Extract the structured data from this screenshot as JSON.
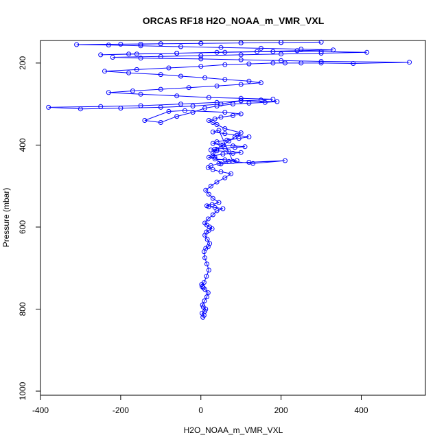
{
  "chart_data": {
    "type": "line",
    "title": "ORCAS RF18 H2O_NOAA_m_VMR_VXL",
    "xlabel": "H2O_NOAA_m_VMR_VXL",
    "ylabel": "Pressure (mbar)",
    "xlim": [
      -400,
      560
    ],
    "ylim": [
      1010,
      145
    ],
    "y_reversed": true,
    "x_ticks": [
      -400,
      -200,
      0,
      200,
      400
    ],
    "y_ticks": [
      200,
      400,
      600,
      800,
      1000
    ],
    "grid": false,
    "marker": "open-circle",
    "series_color": "#0000ff",
    "series": [
      {
        "x": [
          5,
          8,
          3,
          10,
          12,
          6,
          4,
          9,
          15,
          18,
          10,
          6,
          3,
          2,
          8,
          14,
          20,
          15,
          10,
          8,
          12,
          18,
          22,
          16,
          10,
          14,
          20,
          28,
          22,
          15,
          10,
          18,
          30,
          40,
          55,
          35,
          20,
          15,
          28,
          45,
          30,
          20,
          12,
          25,
          40,
          60,
          75,
          50,
          30,
          18,
          25,
          45,
          70,
          90,
          60,
          35,
          20,
          30,
          55,
          80,
          100,
          70,
          40,
          25,
          35,
          60,
          85,
          110,
          80,
          50,
          30,
          40,
          65,
          95,
          120,
          90,
          60,
          30,
          45,
          80,
          130,
          210,
          120,
          50,
          35,
          30,
          40,
          55,
          70,
          85,
          100,
          60,
          40,
          30,
          20,
          35,
          50,
          80,
          100,
          60,
          -40,
          -80,
          -140,
          -100,
          -60,
          -20,
          10,
          40,
          80,
          120,
          160,
          190,
          100,
          50,
          -20,
          -100,
          -200,
          -300,
          -380,
          -250,
          -150,
          -50,
          40,
          100,
          150,
          180,
          100,
          20,
          -60,
          -150,
          -230,
          -170,
          -100,
          -30,
          40,
          100,
          150,
          120,
          60,
          10,
          -50,
          -100,
          -180,
          -240,
          -160,
          -80,
          0,
          60,
          120,
          180,
          210,
          250,
          300,
          380,
          520,
          300,
          200,
          100,
          0,
          -150,
          -220,
          -100,
          0,
          100,
          200,
          300,
          414,
          300,
          180,
          60,
          -60,
          -180,
          -250,
          -160,
          -60,
          40,
          140,
          240,
          330,
          250,
          150,
          50,
          -50,
          -150,
          -230,
          -310,
          -200,
          -100,
          0,
          100,
          200,
          300,
          200,
          100,
          0,
          -100,
          -150
        ],
        "y": [
          820,
          815,
          810,
          805,
          800,
          795,
          790,
          780,
          770,
          760,
          752,
          748,
          745,
          740,
          735,
          720,
          705,
          690,
          675,
          660,
          652,
          648,
          640,
          630,
          620,
          612,
          608,
          604,
          600,
          595,
          590,
          580,
          570,
          560,
          555,
          552,
          550,
          548,
          545,
          540,
          530,
          520,
          510,
          500,
          490,
          480,
          470,
          465,
          460,
          455,
          450,
          445,
          440,
          438,
          436,
          434,
          430,
          426,
          422,
          420,
          418,
          416,
          414,
          412,
          410,
          408,
          406,
          404,
          402,
          400,
          396,
          392,
          388,
          384,
          380,
          376,
          372,
          368,
          364,
          440,
          445,
          438,
          442,
          446,
          430,
          420,
          410,
          400,
          390,
          380,
          370,
          360,
          350,
          345,
          340,
          336,
          332,
          328,
          324,
          320,
          316,
          318,
          340,
          345,
          330,
          320,
          310,
          305,
          300,
          298,
          296,
          294,
          292,
          300,
          305,
          308,
          310,
          312,
          308,
          306,
          304,
          300,
          296,
          292,
          290,
          288,
          286,
          284,
          280,
          276,
          272,
          268,
          264,
          260,
          256,
          252,
          248,
          244,
          240,
          236,
          232,
          228,
          224,
          220,
          216,
          212,
          208,
          204,
          202,
          200,
          200,
          200,
          200,
          201,
          198,
          196,
          194,
          192,
          190,
          188,
          186,
          184,
          182,
          180,
          178,
          176,
          174,
          172,
          172,
          174,
          176,
          178,
          180,
          178,
          176,
          174,
          172,
          170,
          168,
          166,
          164,
          162,
          160,
          158,
          156,
          155,
          154,
          153,
          152,
          151,
          150,
          149,
          150,
          151,
          152,
          153,
          154
        ]
      }
    ]
  }
}
